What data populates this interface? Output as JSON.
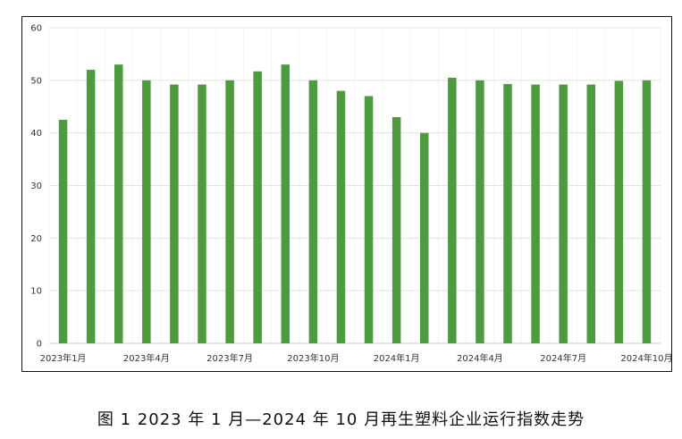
{
  "caption": "图 1  2023 年 1 月—2024 年 10 月再生塑料企业运行指数走势",
  "colors": {
    "bar": "#4e9a3f",
    "grid": "#e3e3e3",
    "axis": "#c8c8c8"
  },
  "chart_data": {
    "type": "bar",
    "categories": [
      "2023年1月",
      "2023年2月",
      "2023年3月",
      "2023年4月",
      "2023年5月",
      "2023年6月",
      "2023年7月",
      "2023年8月",
      "2023年9月",
      "2023年10月",
      "2023年11月",
      "2023年12月",
      "2024年1月",
      "2024年2月",
      "2024年3月",
      "2024年4月",
      "2024年5月",
      "2024年6月",
      "2024年7月",
      "2024年8月",
      "2024年9月",
      "2024年10月"
    ],
    "x_tick_labels": [
      {
        "index": 0,
        "label": "2023年1月"
      },
      {
        "index": 3,
        "label": "2023年4月"
      },
      {
        "index": 6,
        "label": "2023年7月"
      },
      {
        "index": 9,
        "label": "2023年10月"
      },
      {
        "index": 12,
        "label": "2024年1月"
      },
      {
        "index": 15,
        "label": "2024年4月"
      },
      {
        "index": 18,
        "label": "2024年7月"
      },
      {
        "index": 21,
        "label": "2024年10月"
      }
    ],
    "values": [
      42.5,
      52,
      53,
      50,
      49.2,
      49.2,
      50,
      51.7,
      53,
      50,
      48,
      47,
      43,
      40,
      50.5,
      50,
      49.3,
      49.2,
      49.2,
      49.2,
      49.9,
      50
    ],
    "ylim": [
      0,
      60
    ],
    "yticks": [
      0,
      10,
      20,
      30,
      40,
      50,
      60
    ],
    "grid": true,
    "legend": "none"
  }
}
